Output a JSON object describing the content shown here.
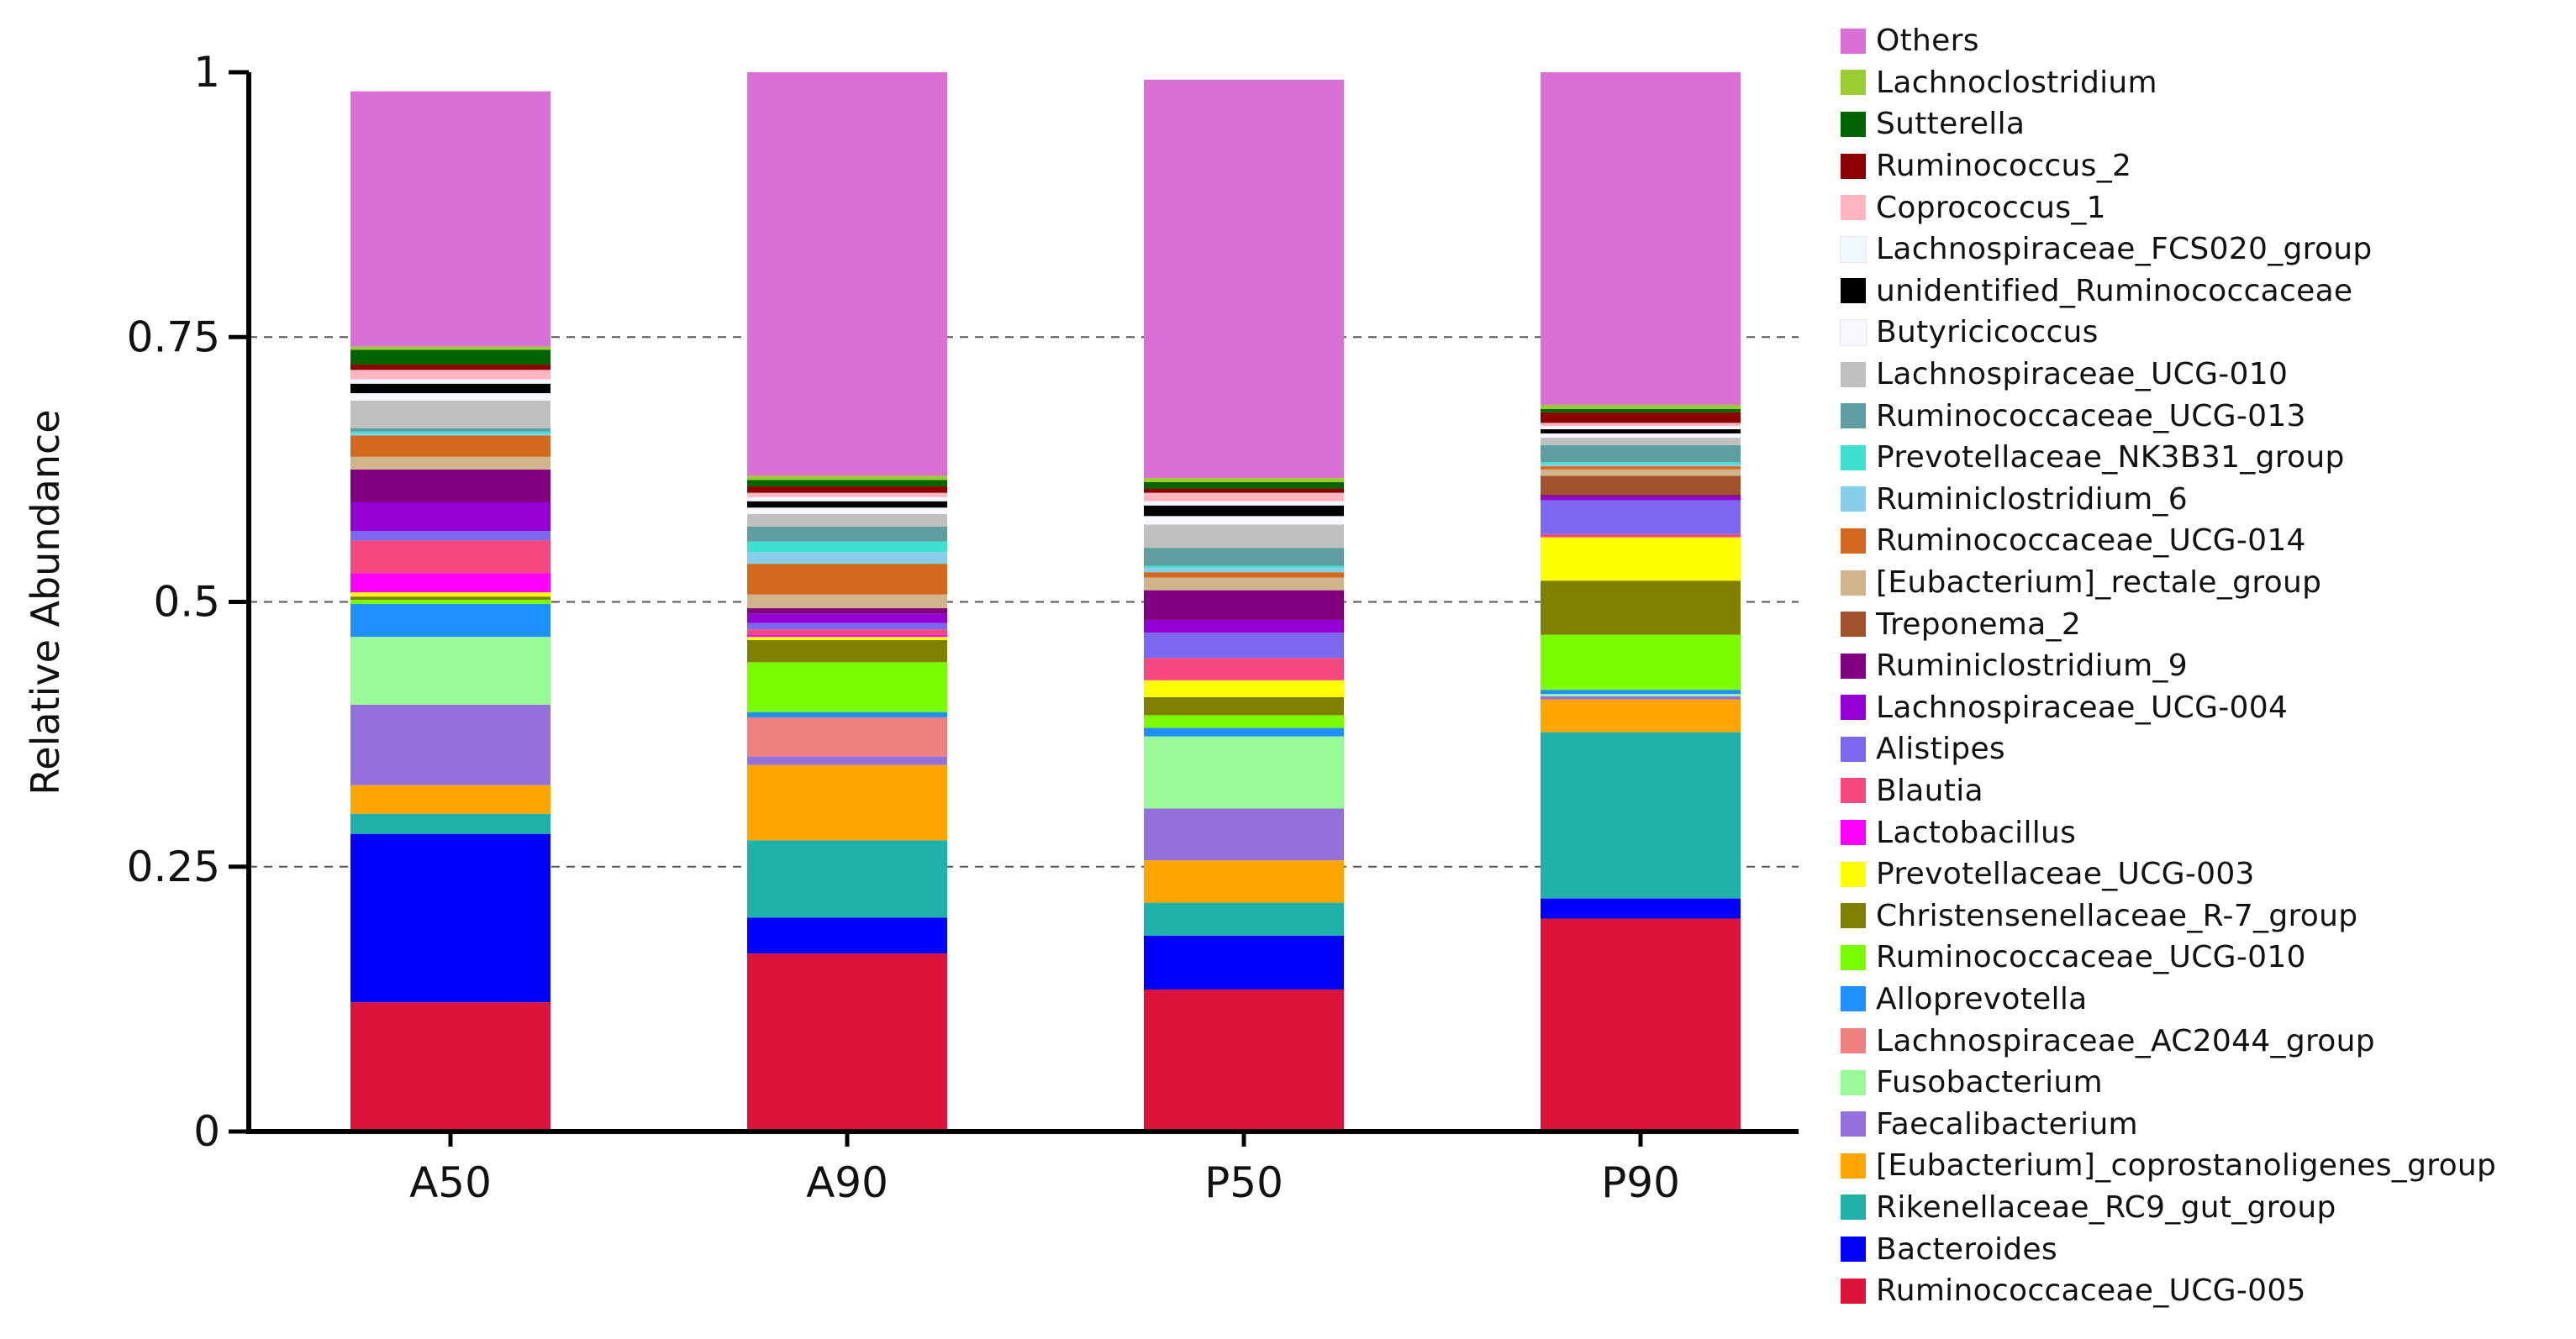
{
  "chart_data": {
    "type": "bar",
    "stacked": true,
    "ylabel": "Relative Abundance",
    "xlabel": "",
    "ylim": [
      0,
      1
    ],
    "yticks": [
      0,
      0.25,
      0.5,
      0.75,
      1
    ],
    "ytick_labels": [
      "0",
      "0.25",
      "0.5",
      "0.75",
      "1"
    ],
    "grid": "dashed horizontal at 0.25, 0.5, 0.75",
    "legend_position": "right",
    "categories": [
      "A50",
      "A90",
      "P50",
      "P90"
    ],
    "series": [
      {
        "name": "Ruminococcaceae_UCG-005",
        "color": "#DC143C",
        "values": [
          0.122,
          0.168,
          0.134,
          0.201
        ]
      },
      {
        "name": "Bacteroides",
        "color": "#0000FF",
        "values": [
          0.159,
          0.034,
          0.051,
          0.019
        ]
      },
      {
        "name": "Rikenellaceae_RC9_gut_group",
        "color": "#20B2AA",
        "values": [
          0.019,
          0.073,
          0.031,
          0.157
        ]
      },
      {
        "name": "[Eubacterium]_coprostanoligenes_group",
        "color": "#FFA500",
        "values": [
          0.027,
          0.071,
          0.04,
          0.031
        ]
      },
      {
        "name": "Faecalibacterium",
        "color": "#9370DB",
        "values": [
          0.076,
          0.008,
          0.049,
          0.003
        ]
      },
      {
        "name": "Fusobacterium",
        "color": "#98FB98",
        "values": [
          0.064,
          0.0,
          0.068,
          0.002
        ]
      },
      {
        "name": "Lachnospiraceae_AC2044_group",
        "color": "#F08080",
        "values": [
          0.0,
          0.037,
          0.0,
          0.0
        ]
      },
      {
        "name": "Alloprevotella",
        "color": "#1E90FF",
        "values": [
          0.031,
          0.005,
          0.008,
          0.004
        ]
      },
      {
        "name": "Ruminococcaceae_UCG-010",
        "color": "#7CFC00",
        "values": [
          0.004,
          0.047,
          0.012,
          0.052
        ]
      },
      {
        "name": "Christensenellaceae_R-7_group",
        "color": "#808000",
        "values": [
          0.003,
          0.021,
          0.017,
          0.051
        ]
      },
      {
        "name": "Prevotellaceae_UCG-003",
        "color": "#FFFF00",
        "values": [
          0.004,
          0.003,
          0.016,
          0.041
        ]
      },
      {
        "name": "Lactobacillus",
        "color": "#FF00FF",
        "values": [
          0.018,
          0.002,
          0.0,
          0.0
        ]
      },
      {
        "name": "Blautia",
        "color": "#F5487F",
        "values": [
          0.031,
          0.005,
          0.021,
          0.003
        ]
      },
      {
        "name": "Alistipes",
        "color": "#7B68EE",
        "values": [
          0.009,
          0.006,
          0.024,
          0.032
        ]
      },
      {
        "name": "Lachnospiraceae_UCG-004",
        "color": "#9400D3",
        "values": [
          0.027,
          0.009,
          0.012,
          0.003
        ]
      },
      {
        "name": "Ruminiclostridium_9",
        "color": "#800080",
        "values": [
          0.031,
          0.005,
          0.028,
          0.002
        ]
      },
      {
        "name": "Treponema_2",
        "color": "#A0522D",
        "values": [
          0.0,
          0.0,
          0.0,
          0.018
        ]
      },
      {
        "name": "[Eubacterium]_rectale_group",
        "color": "#D2B48C",
        "values": [
          0.012,
          0.013,
          0.012,
          0.006
        ]
      },
      {
        "name": "Ruminococcaceae_UCG-014",
        "color": "#D2691E",
        "values": [
          0.02,
          0.029,
          0.005,
          0.003
        ]
      },
      {
        "name": "Ruminiclostridium_6",
        "color": "#87CEEB",
        "values": [
          0.002,
          0.011,
          0.004,
          0.002
        ]
      },
      {
        "name": "Prevotellaceae_NK3B31_group",
        "color": "#40E0D0",
        "values": [
          0.002,
          0.01,
          0.002,
          0.002
        ]
      },
      {
        "name": "Ruminococcaceae_UCG-013",
        "color": "#5F9EA0",
        "values": [
          0.003,
          0.014,
          0.017,
          0.016
        ]
      },
      {
        "name": "Lachnospiraceae_UCG-010",
        "color": "#C0C0C0",
        "values": [
          0.026,
          0.012,
          0.022,
          0.007
        ]
      },
      {
        "name": "Butyricicoccus",
        "color": "#F8F8FF",
        "values": [
          0.007,
          0.006,
          0.008,
          0.004
        ]
      },
      {
        "name": "unidentified_Ruminococcaceae",
        "color": "#000000",
        "values": [
          0.009,
          0.006,
          0.01,
          0.004
        ]
      },
      {
        "name": "Lachnospiraceae_FCS020_group",
        "color": "#F0F8FF",
        "values": [
          0.004,
          0.004,
          0.004,
          0.003
        ]
      },
      {
        "name": "Coprococcus_1",
        "color": "#FFB6C1",
        "values": [
          0.009,
          0.004,
          0.008,
          0.003
        ]
      },
      {
        "name": "Ruminococcus_2",
        "color": "#8B0000",
        "values": [
          0.005,
          0.006,
          0.004,
          0.01
        ]
      },
      {
        "name": "Sutterella",
        "color": "#006400",
        "values": [
          0.014,
          0.006,
          0.006,
          0.003
        ]
      },
      {
        "name": "Lachnoclostridium",
        "color": "#9ACD32",
        "values": [
          0.003,
          0.004,
          0.004,
          0.004
        ]
      },
      {
        "name": "Others",
        "color": "#DA70D6",
        "values": [
          0.241,
          0.381,
          0.376,
          0.314
        ]
      }
    ]
  }
}
